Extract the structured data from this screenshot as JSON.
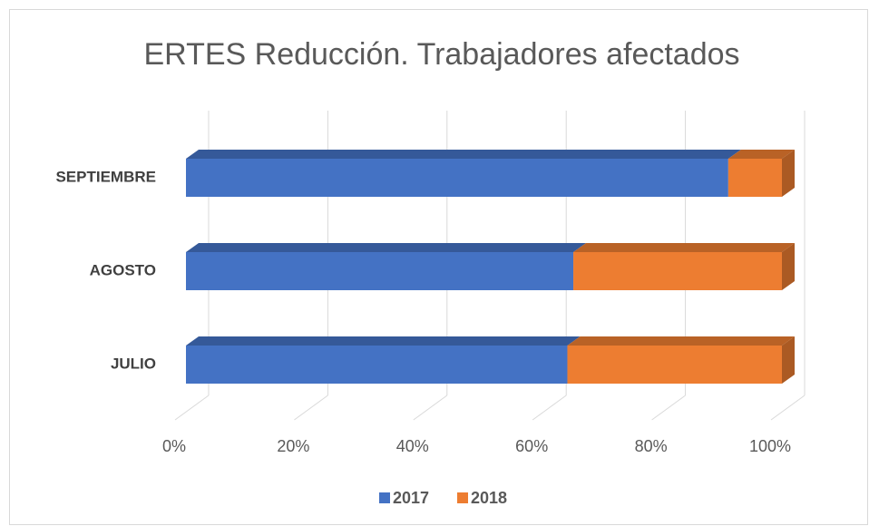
{
  "chart_data": {
    "type": "stacked_barh_3d",
    "title": "ERTES Reducción. Trabajadores afectados",
    "categories": [
      "JULIO",
      "AGOSTO",
      "SEPTIEMBRE"
    ],
    "series": [
      {
        "name": "2017",
        "color": "#4472c4",
        "values": [
          64,
          65,
          91
        ]
      },
      {
        "name": "2018",
        "color": "#ed7d31",
        "values": [
          36,
          35,
          9
        ]
      }
    ],
    "xlim": [
      0,
      100
    ],
    "xticks": [
      {
        "value": 0,
        "label": "0%"
      },
      {
        "value": 20,
        "label": "20%"
      },
      {
        "value": 40,
        "label": "40%"
      },
      {
        "value": 60,
        "label": "60%"
      },
      {
        "value": 80,
        "label": "80%"
      },
      {
        "value": 100,
        "label": "100%"
      }
    ],
    "grid": true,
    "legend": "bottom"
  }
}
